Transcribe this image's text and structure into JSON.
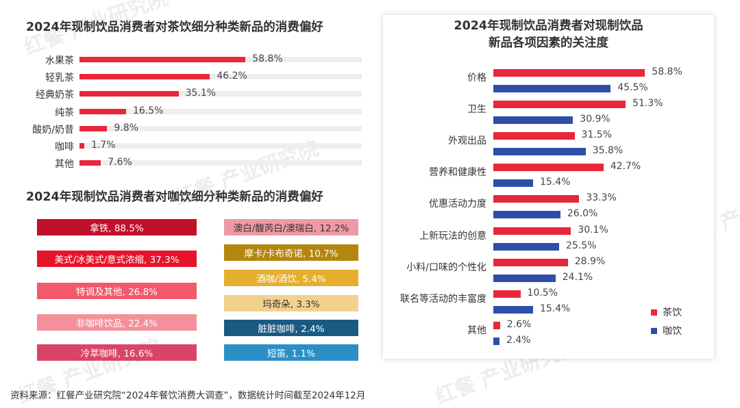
{
  "chart_data": [
    {
      "type": "bar",
      "title": "2024年现制饮品消费者对茶饮细分种类新品的消费偏好",
      "categories": [
        "水果茶",
        "轻乳茶",
        "经典奶茶",
        "纯茶",
        "酸奶/奶昔",
        "咖啡",
        "其他"
      ],
      "values": [
        58.8,
        46.2,
        35.1,
        16.5,
        9.8,
        1.7,
        7.6
      ],
      "value_labels": [
        "58.8%",
        "46.2%",
        "35.1%",
        "16.5%",
        "9.8%",
        "1.7%",
        "7.6%"
      ],
      "ylim": [
        0,
        100
      ],
      "color": "#e8273a"
    },
    {
      "type": "table",
      "title": "2024年现制饮品消费者对咖饮细分种类新品的消费偏好",
      "items": [
        {
          "label": "拿铁, 88.5%",
          "value": 88.5,
          "color": "#c0102b",
          "text_color": "#ffffff"
        },
        {
          "label": "美式/冰美式/意式浓缩, 37.3%",
          "value": 37.3,
          "color": "#e5142a",
          "text_color": "#ffffff"
        },
        {
          "label": "特调及其他, 26.8%",
          "value": 26.8,
          "color": "#f25a6c",
          "text_color": "#ffffff"
        },
        {
          "label": "非咖啡饮品, 22.4%",
          "value": 22.4,
          "color": "#f3909c",
          "text_color": "#ffffff"
        },
        {
          "label": "冷萃咖啡, 16.6%",
          "value": 16.6,
          "color": "#da4467",
          "text_color": "#ffffff"
        },
        {
          "label": "澳白/馥芮白/澳瑞白, 12.2%",
          "value": 12.2,
          "color": "#ee9aa4",
          "text_color": "#333333"
        },
        {
          "label": "摩卡/卡布奇诺, 10.7%",
          "value": 10.7,
          "color": "#b5860f",
          "text_color": "#ffffff"
        },
        {
          "label": "酒咖/酒饮, 5.4%",
          "value": 5.4,
          "color": "#e5ae2e",
          "text_color": "#ffffff"
        },
        {
          "label": "玛奇朵, 3.3%",
          "value": 3.3,
          "color": "#f2d18c",
          "text_color": "#333333"
        },
        {
          "label": "脏脏咖啡, 2.4%",
          "value": 2.4,
          "color": "#1a5a82",
          "text_color": "#ffffff"
        },
        {
          "label": "短笛, 1.1%",
          "value": 1.1,
          "color": "#2b8fc6",
          "text_color": "#ffffff"
        }
      ]
    },
    {
      "type": "bar",
      "title": "2024年现制饮品消费者对现制饮品新品各项因素的关注度",
      "title_lines": [
        "2024年现制饮品消费者对现制饮品",
        "新品各项因素的关注度"
      ],
      "categories": [
        "价格",
        "卫生",
        "外观出品",
        "营养和健康性",
        "优惠活动力度",
        "上新玩法的创意",
        "小料/口味的个性化",
        "联名等活动的丰富度",
        "其他"
      ],
      "series": [
        {
          "name": "茶饮",
          "color": "#e8273a",
          "values": [
            58.8,
            51.3,
            31.5,
            42.7,
            33.3,
            30.1,
            28.9,
            10.5,
            2.6
          ],
          "value_labels": [
            "58.8%",
            "51.3%",
            "31.5%",
            "42.7%",
            "33.3%",
            "30.1%",
            "28.9%",
            "10.5%",
            "2.6%"
          ]
        },
        {
          "name": "咖饮",
          "color": "#2e4ea8",
          "values": [
            45.5,
            30.9,
            35.8,
            15.4,
            26.0,
            25.5,
            24.1,
            15.4,
            2.4
          ],
          "value_labels": [
            "45.5%",
            "30.9%",
            "35.8%",
            "15.4%",
            "26.0%",
            "25.5%",
            "24.1%",
            "15.4%",
            "2.4%"
          ]
        }
      ],
      "legend": "bottom-right"
    }
  ],
  "source": "资料来源：红餐产业研究院“2024年餐饮消费大调查”，数据统计时间截至2024年12月"
}
